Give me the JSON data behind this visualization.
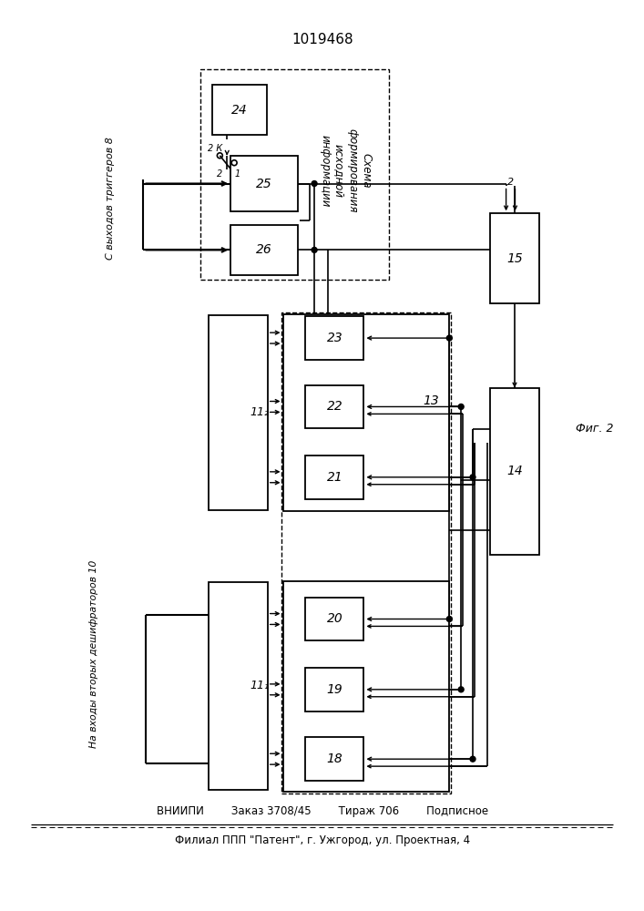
{
  "title": "1019468",
  "footer_line1": "ВНИИПИ        Заказ 3708/45        Тираж 706        Подписное",
  "footer_line2": "Филиал ППП \"Патент\", г. Ужгород, ул. Проектная, 4",
  "background": "#ffffff"
}
